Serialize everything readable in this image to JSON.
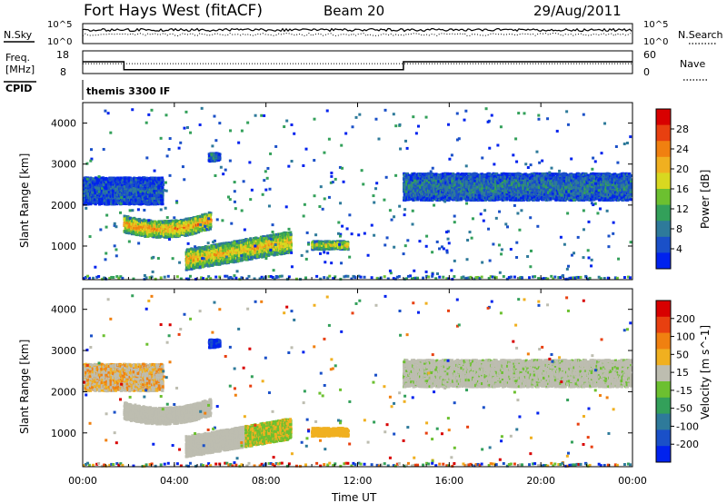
{
  "header": {
    "station": "Fort Hays West (fitACF)",
    "beam": "Beam 20",
    "date": "29/Aug/2011"
  },
  "noise_panel": {
    "left_label": "N.Sky",
    "right_label": "N.Search",
    "y_ticks_left": [
      "10^5",
      "10^0"
    ],
    "y_ticks_right": [
      "10^5",
      "10^0"
    ]
  },
  "freq_panel": {
    "left_label_top": "Freq.",
    "left_label_bottom": "[MHz]",
    "right_label": "Nave",
    "y_ticks_left": [
      "18",
      "8"
    ],
    "y_ticks_right": [
      "60",
      "0"
    ]
  },
  "cpid": {
    "label": "CPID",
    "value": "themis 3300 IF"
  },
  "colors": {
    "power_scale": [
      "#0022ee",
      "#1a50c8",
      "#2e7a9a",
      "#33a05a",
      "#6cc030",
      "#d8d820",
      "#f0b020",
      "#f08010",
      "#e84010",
      "#d80000"
    ],
    "velocity_scale": [
      "#0022ee",
      "#1a50c8",
      "#2e7a9a",
      "#33a05a",
      "#6cc030",
      "#bdbdb0",
      "#f0b020",
      "#f08010",
      "#e84010",
      "#d80000"
    ],
    "ground_scatter": "#bdbdb0"
  },
  "chart_data": [
    {
      "type": "heatmap",
      "name": "power",
      "xlabel": "",
      "ylabel": "Slant Range [km]",
      "x_ticks": [
        "00:00",
        "04:00",
        "08:00",
        "12:00",
        "16:00",
        "20:00",
        "00:00"
      ],
      "y_ticks": [
        "1000",
        "2000",
        "3000",
        "4000"
      ],
      "ylim": [
        180,
        4500
      ],
      "colorbar_label": "Power [dB]",
      "colorbar_ticks": [
        "4",
        "8",
        "12",
        "16",
        "20",
        "24",
        "28"
      ],
      "clim": [
        0,
        30
      ],
      "structures": [
        {
          "feature": "early band",
          "t_start_h": 0.0,
          "t_end_h": 3.5,
          "range_km": [
            2050,
            2700
          ],
          "power_db": 6
        },
        {
          "feature": "strong arc",
          "t_start_h": 1.8,
          "t_end_h": 5.5,
          "range_km": [
            1300,
            1700
          ],
          "power_db": 22
        },
        {
          "feature": "evening arc",
          "t_start_h": 4.5,
          "t_end_h": 9.0,
          "range_km": [
            700,
            1200
          ],
          "power_db": 20
        },
        {
          "feature": "patch",
          "t_start_h": 5.5,
          "t_end_h": 5.9,
          "range_km": [
            3100,
            3300
          ],
          "power_db": 8
        },
        {
          "feature": "patch",
          "t_start_h": 10.0,
          "t_end_h": 11.5,
          "range_km": [
            950,
            1150
          ],
          "power_db": 18
        },
        {
          "feature": "morning band",
          "t_start_h": 14.0,
          "t_end_h": 24.0,
          "range_km": [
            2150,
            2800
          ],
          "power_db": 8
        }
      ]
    },
    {
      "type": "heatmap",
      "name": "velocity",
      "xlabel": "Time UT",
      "ylabel": "Slant Range [km]",
      "x_ticks": [
        "00:00",
        "04:00",
        "08:00",
        "12:00",
        "16:00",
        "20:00",
        "00:00"
      ],
      "y_ticks": [
        "1000",
        "2000",
        "3000",
        "4000"
      ],
      "ylim": [
        180,
        4500
      ],
      "colorbar_label": "Velocity [m s^-1]",
      "colorbar_ticks": [
        "200",
        "100",
        "50",
        "15",
        "-15",
        "-50",
        "-100",
        "-200"
      ],
      "clim": [
        -250,
        250
      ]
    },
    {
      "type": "line",
      "name": "frequency",
      "series": [
        {
          "name": "Freq.",
          "points": [
            [
              0,
              14
            ],
            [
              1.8,
              14
            ],
            [
              1.8,
              10.5
            ],
            [
              14,
              10.5
            ],
            [
              14,
              14
            ],
            [
              24,
              14
            ]
          ]
        },
        {
          "name": "Nave",
          "points": [
            [
              0,
              26
            ],
            [
              24,
              26
            ]
          ]
        }
      ]
    }
  ]
}
